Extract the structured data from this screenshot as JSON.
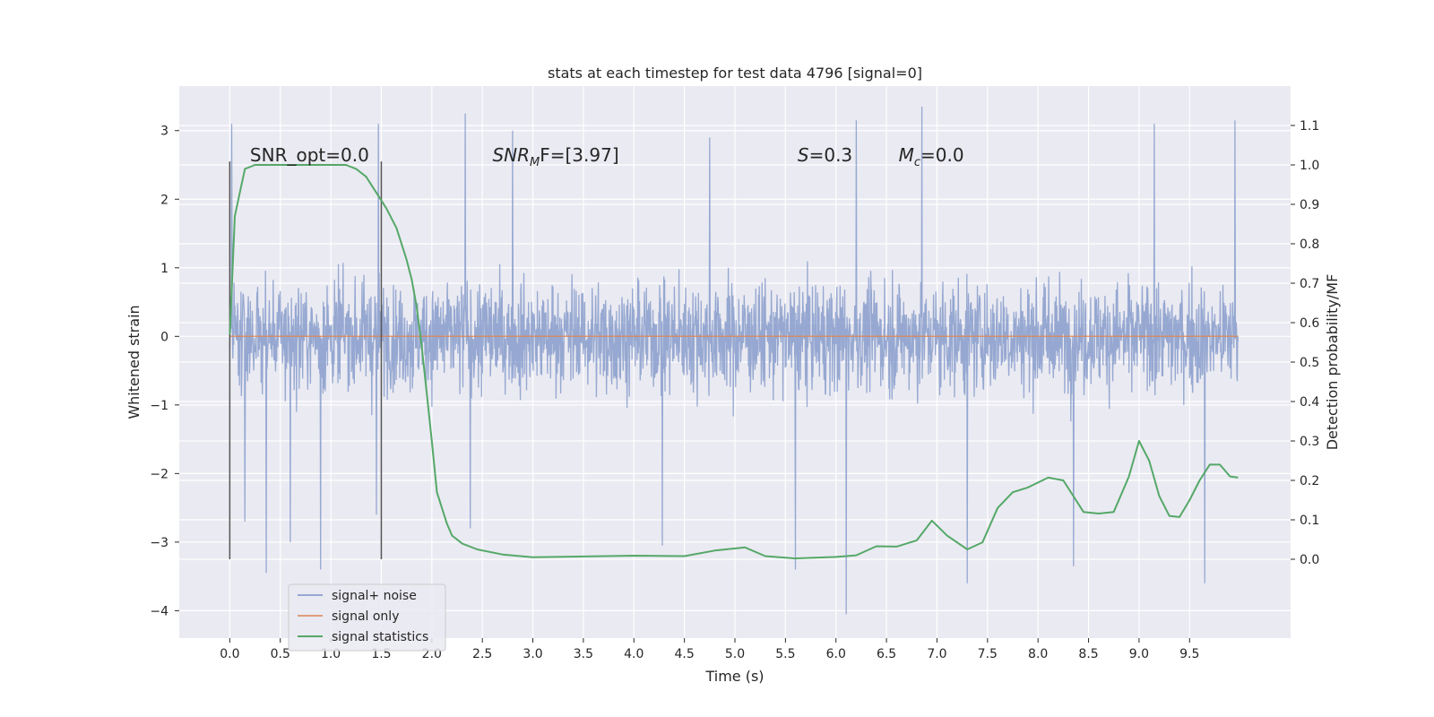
{
  "chart_data": {
    "type": "line",
    "title": "stats at each timestep for test data 4796 [signal=0]",
    "xlabel": "Time (s)",
    "ylabel_left": "Whitened strain",
    "ylabel_right": "Detection probability/MF",
    "xlim": [
      -0.5,
      10.5
    ],
    "ylim_left": [
      -4.4,
      3.65
    ],
    "ylim_right": [
      -0.2,
      1.2
    ],
    "x_ticks": [
      "0.0",
      "0.5",
      "1.0",
      "1.5",
      "2.0",
      "2.5",
      "3.0",
      "3.5",
      "4.0",
      "4.5",
      "5.0",
      "5.5",
      "6.0",
      "6.5",
      "7.0",
      "7.5",
      "8.0",
      "8.5",
      "9.0",
      "9.5"
    ],
    "y_ticks_left": [
      "−4",
      "−3",
      "−2",
      "−1",
      "0",
      "1",
      "2",
      "3"
    ],
    "y_ticks_right": [
      "0.0",
      "0.1",
      "0.2",
      "0.3",
      "0.4",
      "0.5",
      "0.6",
      "0.7",
      "0.8",
      "0.9",
      "1.0",
      "1.1"
    ],
    "grid": true,
    "legend_location": "lower left",
    "colors": {
      "noise": "#7a92c6",
      "signal": "#dd8452",
      "stats": "#55a868",
      "marker": "#555555",
      "plot_bg": "#eaeaf2",
      "grid": "#ffffff"
    },
    "series": [
      {
        "name": "signal+ noise",
        "axis": "left",
        "description_visible": "dense noise band spanning about ±1.5 with spikes to about +3.3 and -4.0",
        "x_range": [
          0.0,
          9.98
        ],
        "band": [
          -1.5,
          1.4
        ],
        "spikes": [
          {
            "x": 0.02,
            "y": 3.1
          },
          {
            "x": 0.15,
            "y": -2.7
          },
          {
            "x": 0.36,
            "y": -3.45
          },
          {
            "x": 0.6,
            "y": -3.0
          },
          {
            "x": 0.9,
            "y": -3.4
          },
          {
            "x": 1.47,
            "y": 3.1
          },
          {
            "x": 1.45,
            "y": -2.6
          },
          {
            "x": 2.33,
            "y": 3.25
          },
          {
            "x": 2.38,
            "y": -2.8
          },
          {
            "x": 2.8,
            "y": 3.0
          },
          {
            "x": 4.28,
            "y": -3.05
          },
          {
            "x": 4.75,
            "y": 2.9
          },
          {
            "x": 5.6,
            "y": -3.4
          },
          {
            "x": 6.1,
            "y": -4.05
          },
          {
            "x": 6.2,
            "y": 3.15
          },
          {
            "x": 6.85,
            "y": 3.35
          },
          {
            "x": 7.3,
            "y": -3.6
          },
          {
            "x": 8.35,
            "y": -3.35
          },
          {
            "x": 9.15,
            "y": 3.1
          },
          {
            "x": 9.65,
            "y": -3.6
          },
          {
            "x": 9.95,
            "y": 3.15
          }
        ]
      },
      {
        "name": "signal only",
        "axis": "left",
        "x": [
          0.0,
          9.98
        ],
        "y": [
          0.0,
          0.0
        ]
      },
      {
        "name": "signal statistics",
        "axis": "right",
        "x": [
          0.0,
          0.05,
          0.1,
          0.15,
          0.25,
          0.4,
          0.6,
          0.8,
          1.0,
          1.15,
          1.25,
          1.35,
          1.45,
          1.55,
          1.65,
          1.75,
          1.8,
          1.85,
          1.9,
          1.95,
          2.0,
          2.05,
          2.1,
          2.15,
          2.2,
          2.3,
          2.45,
          2.7,
          3.0,
          3.5,
          4.0,
          4.5,
          4.8,
          5.1,
          5.3,
          5.6,
          6.0,
          6.2,
          6.4,
          6.6,
          6.8,
          6.95,
          7.1,
          7.3,
          7.45,
          7.6,
          7.75,
          7.9,
          8.1,
          8.25,
          8.45,
          8.6,
          8.75,
          8.9,
          9.0,
          9.1,
          9.2,
          9.3,
          9.4,
          9.5,
          9.6,
          9.7,
          9.8,
          9.9,
          9.98
        ],
        "y": [
          0.57,
          0.87,
          0.93,
          0.99,
          1.0,
          1.0,
          1.0,
          1.0,
          1.0,
          1.0,
          0.99,
          0.97,
          0.93,
          0.89,
          0.84,
          0.76,
          0.71,
          0.64,
          0.54,
          0.42,
          0.3,
          0.17,
          0.13,
          0.09,
          0.06,
          0.04,
          0.025,
          0.012,
          0.005,
          0.007,
          0.009,
          0.008,
          0.022,
          0.03,
          0.008,
          0.002,
          0.006,
          0.01,
          0.033,
          0.032,
          0.048,
          0.098,
          0.06,
          0.025,
          0.043,
          0.13,
          0.17,
          0.182,
          0.207,
          0.2,
          0.12,
          0.116,
          0.12,
          0.21,
          0.3,
          0.25,
          0.16,
          0.11,
          0.107,
          0.15,
          0.2,
          0.24,
          0.24,
          0.21,
          0.207
        ]
      }
    ],
    "vertical_markers": {
      "axis": "left",
      "x": [
        0.0,
        1.5
      ],
      "y_range": [
        -3.25,
        2.55
      ]
    },
    "annotations": [
      {
        "id": "snr_opt",
        "text": "SNR_opt=0.0",
        "x": 0.2,
        "y": 2.55
      },
      {
        "id": "snr_mf",
        "base": "SNR",
        "sub": "M",
        "tail": "F=[3.97]",
        "x": 2.6,
        "y": 2.55
      },
      {
        "id": "s",
        "italic": "S",
        "tail": "=0.3",
        "x": 5.62,
        "y": 2.55
      },
      {
        "id": "mc",
        "italic": "M",
        "sub": "c",
        "tail": "=0.0",
        "x": 6.62,
        "y": 2.55
      }
    ]
  }
}
